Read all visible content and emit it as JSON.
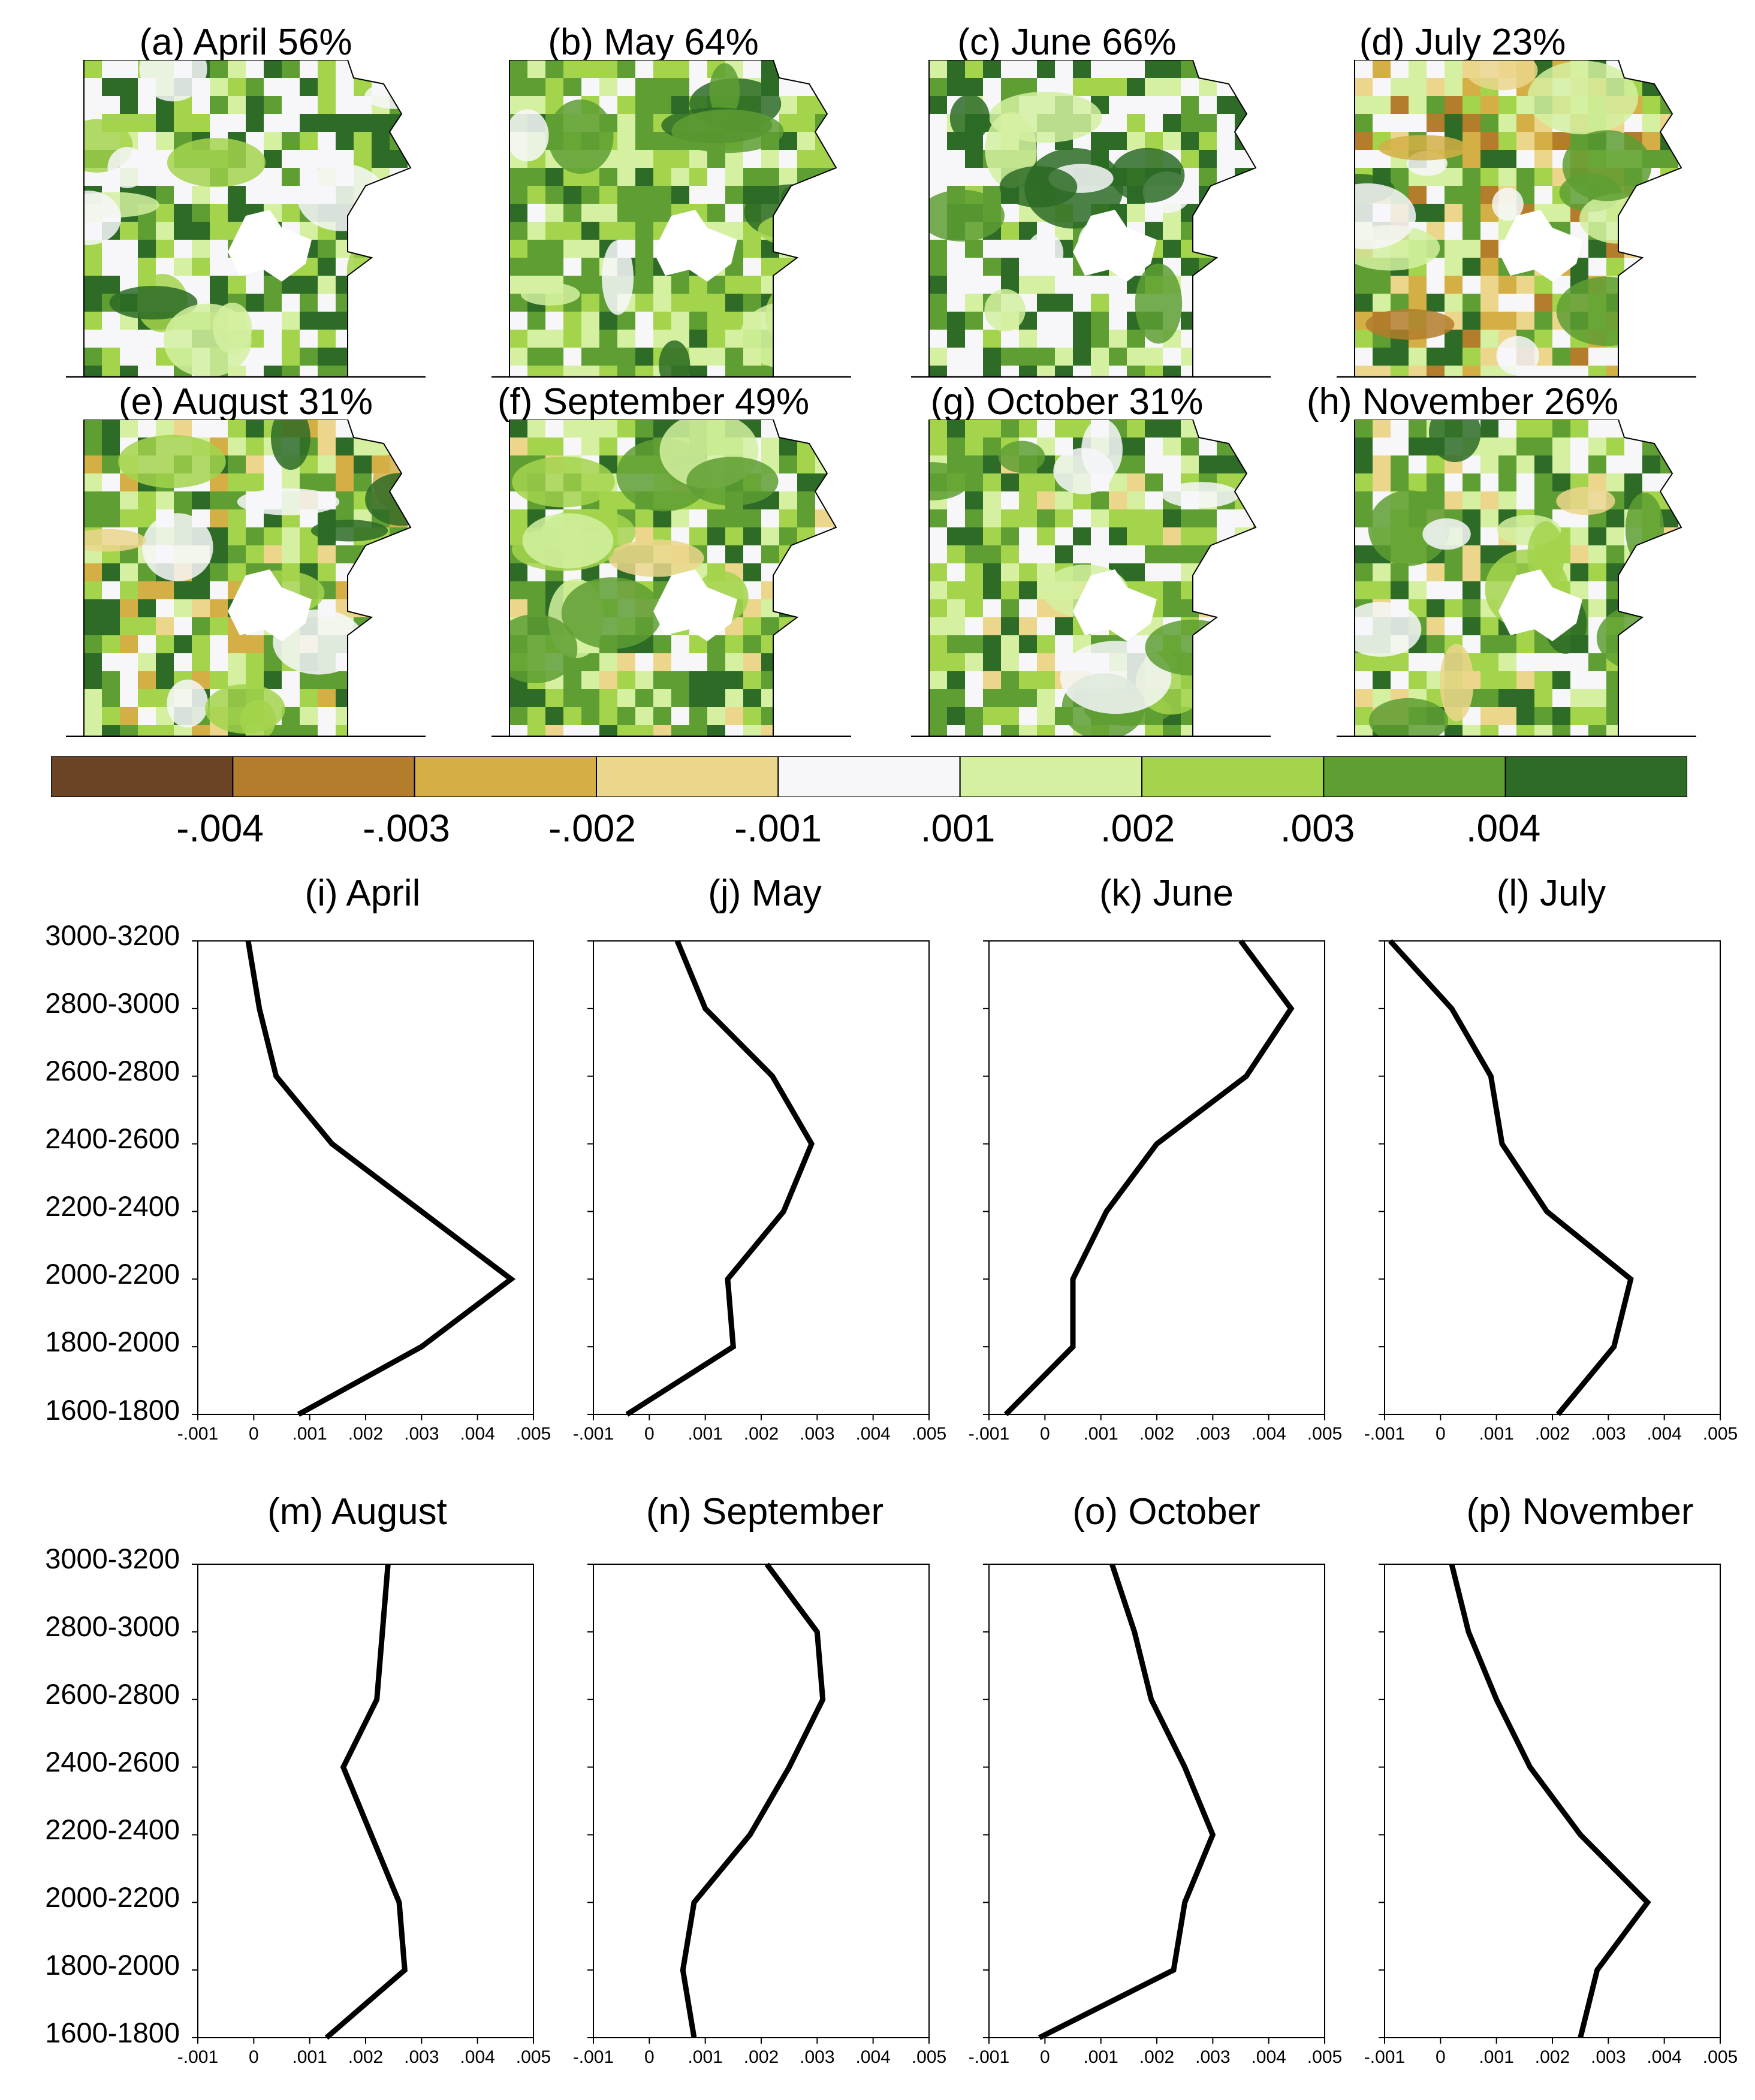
{
  "colors": {
    "legend_bins": [
      "#6b4425",
      "#b37d2b",
      "#d4af45",
      "#ebd68c",
      "#f7f7fa",
      "#d4f0a0",
      "#a3d44c",
      "#5e9e33",
      "#2d6b26"
    ],
    "map_ink": "#000000",
    "line": "#000000"
  },
  "maps": {
    "panels": [
      {
        "title": "(a) April 56%"
      },
      {
        "title": "(b) May 64%"
      },
      {
        "title": "(c) June 66%"
      },
      {
        "title": "(d) July 23%"
      },
      {
        "title": "(e) August 31%"
      },
      {
        "title": "(f) September 49%"
      },
      {
        "title": "(g) October 31%"
      },
      {
        "title": "(h) November 26%"
      }
    ]
  },
  "legend": {
    "labels": [
      "-.004",
      "-.003",
      "-.002",
      "-.001",
      ".001",
      ".002",
      ".003",
      ".004"
    ]
  },
  "chart_data": {
    "type": "line",
    "orientation": "horizontal-profile",
    "y_categories": [
      "1600-1800",
      "1800-2000",
      "2000-2200",
      "2200-2400",
      "2400-2600",
      "2600-2800",
      "2800-3000",
      "3000-3200"
    ],
    "x_ticks": [
      "-.001",
      "0",
      ".001",
      ".002",
      ".003",
      ".004",
      ".005"
    ],
    "xlim": [
      -0.001,
      0.005
    ],
    "panels": [
      {
        "title": "(i) April",
        "values": [
          0.0008,
          0.003,
          0.0046,
          0.003,
          0.0014,
          0.0004,
          0.0001,
          -0.0001
        ]
      },
      {
        "title": "(j) May",
        "values": [
          -0.0004,
          0.0015,
          0.0014,
          0.0024,
          0.0029,
          0.0022,
          0.001,
          0.0005
        ]
      },
      {
        "title": "(k) June",
        "values": [
          -0.0007,
          0.0005,
          0.0005,
          0.0011,
          0.002,
          0.0036,
          0.0044,
          0.0035
        ]
      },
      {
        "title": "(l) July",
        "values": [
          0.0021,
          0.0031,
          0.0034,
          0.0019,
          0.0011,
          0.0009,
          0.0002,
          -0.0009
        ]
      },
      {
        "title": "(m) August",
        "values": [
          0.0013,
          0.0027,
          0.0026,
          0.0021,
          0.0016,
          0.0022,
          0.0023,
          0.0024
        ]
      },
      {
        "title": "(n) September",
        "values": [
          0.0008,
          0.0006,
          0.0008,
          0.0018,
          0.0025,
          0.0031,
          0.003,
          0.0021
        ]
      },
      {
        "title": "(o) October",
        "values": [
          -0.0001,
          0.0023,
          0.0025,
          0.003,
          0.0025,
          0.0019,
          0.0016,
          0.0012
        ]
      },
      {
        "title": "(p) November",
        "values": [
          0.0025,
          0.0028,
          0.0037,
          0.0025,
          0.0016,
          0.001,
          0.0005,
          0.0002
        ]
      }
    ]
  }
}
